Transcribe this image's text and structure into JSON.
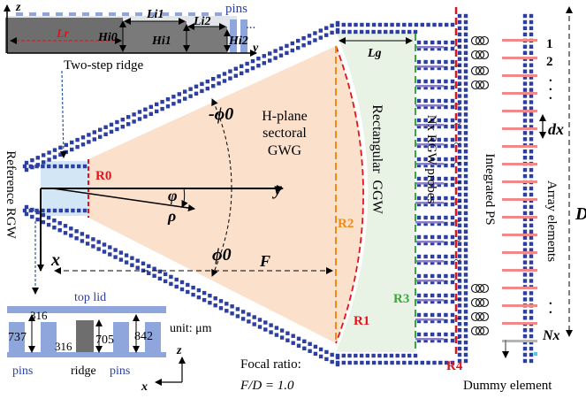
{
  "colors": {
    "pin_blue": "#2c3ea0",
    "inset_blue": "#8ea6dc",
    "sector_fill": "#fbe0cc",
    "guide_fill": "#e8f3e6",
    "reference_fill": "#d3e6f6",
    "dark_ridge": "#6e6e6e",
    "red": "#e0141c",
    "orange": "#f08a17",
    "green": "#3aa83a",
    "probe_purple": "#8d7fc6",
    "element_red": "#f08a8a"
  },
  "icons": [
    "phase-shifter-icon",
    "arrow-icon"
  ],
  "inset_top": {
    "title": "Two-step ridge",
    "axis_z": "z",
    "axis_y": "y",
    "pins_label": "pins",
    "ellipsis": "...",
    "label_Lr": "Lr",
    "label_Hi0": "Hi0",
    "label_Li1": "Li1",
    "label_Hi1": "Hi1",
    "label_Li2": "Li2",
    "label_Hi2": "Hi2"
  },
  "main": {
    "phi0_top": "-ϕ0",
    "phi0_bottom": "ϕ0",
    "phi": "φ",
    "rho": "ρ",
    "axis_y": "y",
    "axis_x": "x",
    "sector_title": [
      "H-plane",
      "sectoral",
      "GWG"
    ],
    "F": "F",
    "Lg": "Lg",
    "dx": "dx",
    "D": "D",
    "reference_rgw": "Reference RGW",
    "rectangular_ggw": "Rectangular  GGW",
    "nx_probes": "Nx RGW probes",
    "integrated_ps": "Integrated PS",
    "array_elements": "Array elements",
    "R0": "R0",
    "R1": "R1",
    "R2": "R2",
    "R3": "R3",
    "R4": "R4",
    "index_1": "1",
    "index_2": "2",
    "index_N": "Nx",
    "dots": ".",
    "focal_label": "Focal ratio:",
    "focal_value": "F/D = 1.0",
    "dummy": "Dummy element"
  },
  "inset_bottom": {
    "top_lid": "top lid",
    "dim_316a": "316",
    "dim_316b": "316",
    "dim_737": "737",
    "dim_705": "705",
    "dim_842": "842",
    "unit": "unit: μm",
    "pins_left": "pins",
    "ridge": "ridge",
    "pins_right": "pins",
    "axis_z": "z",
    "axis_x": "x"
  }
}
